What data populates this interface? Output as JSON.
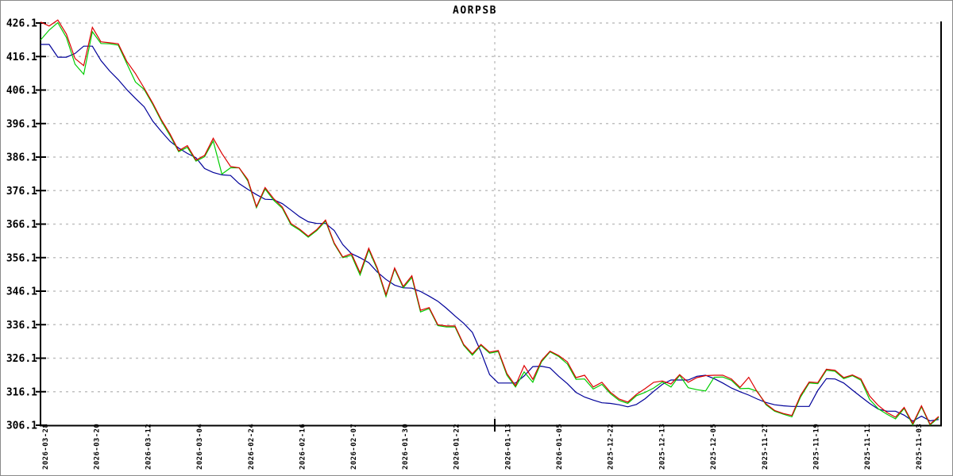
{
  "chart_data": {
    "type": "line",
    "title": "AORPSB",
    "xlabel": "",
    "ylabel": "",
    "grid": "horizontal dashed gridlines at each y tick; one vertical dashed marker line",
    "legend": "none",
    "background_color": "#ffffff",
    "axis_color": "#000000",
    "grid_color": "#c0c0c0",
    "ylim": [
      306.1,
      426.1
    ],
    "y_ticks": [
      426.1,
      416.1,
      406.1,
      396.1,
      386.1,
      376.1,
      366.1,
      356.1,
      346.1,
      336.1,
      326.1,
      316.1,
      306.1
    ],
    "x_tick_labels": [
      "2026-03-28",
      "2026-03-20",
      "2026-03-12",
      "2026-03-04",
      "2026-02-24",
      "2026-02-16",
      "2026-02-07",
      "2026-01-30",
      "2026-01-22",
      "2026-01-13",
      "2026-01-05",
      "2025-12-22",
      "2025-12-13",
      "2025-12-05",
      "2025-11-27",
      "2025-11-19",
      "2025-11-11",
      "2025-11-03"
    ],
    "points_per_tick": 6,
    "vertical_marker_near_label": "2026-01-13",
    "series": [
      {
        "name": "red-line",
        "color": "#dd0000",
        "values": [
          426.4,
          425.2,
          427.0,
          422.8,
          415.5,
          413.4,
          424.8,
          420.5,
          420.2,
          419.9,
          414.6,
          411.0,
          406.7,
          402.2,
          397.2,
          393.0,
          388.0,
          389.5,
          385.2,
          386.6,
          391.7,
          387.2,
          383.3,
          382.9,
          379.4,
          371.3,
          377.0,
          373.7,
          371.2,
          366.3,
          364.6,
          362.5,
          364.5,
          367.3,
          360.5,
          356.3,
          357.3,
          351.6,
          358.9,
          353.0,
          345.0,
          353.0,
          347.5,
          350.7,
          340.4,
          341.2,
          336.1,
          335.7,
          335.7,
          330.2,
          327.4,
          330.2,
          327.9,
          328.4,
          321.5,
          317.9,
          323.9,
          319.8,
          325.4,
          328.2,
          326.9,
          325.0,
          320.3,
          321.0,
          317.5,
          318.9,
          315.9,
          313.9,
          313.0,
          315.3,
          317.0,
          318.9,
          319.3,
          318.4,
          321.2,
          318.9,
          320.3,
          320.9,
          321.0,
          321.0,
          319.9,
          317.4,
          320.4,
          316.0,
          312.5,
          310.5,
          309.6,
          309.0,
          315.0,
          319.0,
          318.8,
          322.8,
          322.5,
          320.3,
          321.1,
          319.9,
          314.8,
          312.0,
          309.9,
          308.5,
          311.4,
          306.6,
          311.9,
          306.4,
          308.7
        ]
      },
      {
        "name": "green-line",
        "color": "#00cc00",
        "values": [
          421.0,
          424.0,
          426.2,
          421.8,
          413.8,
          410.8,
          423.5,
          420.0,
          419.9,
          419.5,
          413.9,
          408.5,
          406.3,
          401.8,
          396.8,
          392.5,
          387.7,
          389.0,
          384.9,
          386.2,
          390.9,
          381.0,
          382.9,
          382.9,
          379.0,
          371.0,
          376.6,
          373.2,
          370.8,
          365.9,
          364.3,
          362.2,
          364.2,
          367.0,
          360.2,
          356.1,
          356.8,
          350.9,
          358.4,
          352.6,
          344.5,
          352.7,
          347.1,
          350.2,
          339.9,
          340.9,
          335.8,
          335.4,
          335.4,
          329.9,
          327.0,
          329.9,
          327.6,
          328.1,
          321.0,
          317.5,
          322.0,
          318.9,
          325.0,
          328.0,
          326.6,
          324.4,
          319.8,
          319.9,
          316.9,
          318.3,
          315.5,
          313.5,
          312.6,
          314.9,
          315.9,
          317.2,
          319.0,
          317.5,
          321.0,
          317.3,
          316.7,
          316.3,
          320.4,
          320.5,
          319.5,
          317.0,
          317.1,
          316.2,
          312.2,
          310.3,
          309.4,
          308.6,
          314.5,
          318.7,
          318.5,
          322.5,
          322.2,
          320.0,
          320.9,
          319.5,
          313.8,
          311.0,
          309.4,
          308.0,
          311.1,
          306.2,
          311.6,
          306.2,
          308.4
        ]
      },
      {
        "name": "blue-line",
        "color": "#000099",
        "values": [
          419.7,
          419.7,
          415.9,
          415.9,
          417.0,
          419.2,
          419.2,
          414.9,
          411.8,
          409.2,
          406.2,
          403.6,
          401.1,
          396.8,
          393.7,
          390.8,
          388.8,
          387.2,
          385.9,
          382.7,
          381.5,
          380.8,
          380.6,
          378.2,
          376.5,
          374.9,
          373.5,
          373.4,
          372.2,
          370.3,
          368.3,
          366.8,
          366.3,
          366.3,
          364.2,
          360.0,
          357.3,
          356.1,
          354.6,
          351.8,
          349.6,
          347.9,
          347.1,
          347.0,
          346.0,
          344.6,
          343.1,
          341.0,
          338.7,
          336.5,
          333.8,
          328.0,
          321.2,
          318.7,
          318.7,
          318.7,
          320.8,
          323.6,
          323.7,
          323.2,
          320.7,
          318.5,
          315.9,
          314.5,
          313.6,
          312.8,
          312.6,
          312.2,
          311.6,
          312.3,
          314.0,
          316.2,
          318.3,
          319.6,
          319.6,
          319.6,
          320.7,
          321.0,
          320.0,
          318.7,
          317.2,
          316.1,
          315.1,
          313.9,
          312.9,
          312.2,
          311.9,
          311.7,
          311.7,
          311.7,
          316.5,
          320.0,
          319.9,
          318.7,
          316.6,
          314.6,
          312.6,
          310.9,
          310.3,
          310.3,
          309.1,
          307.3,
          308.8,
          307.4,
          307.8
        ]
      }
    ]
  }
}
